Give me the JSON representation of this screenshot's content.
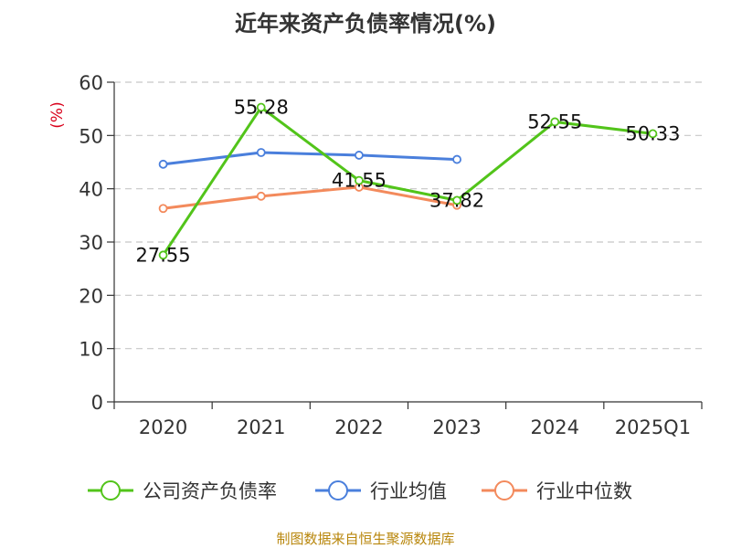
{
  "colors": {
    "series_main": "#52c41a",
    "series_avg": "#4a7fdc",
    "series_median": "#f38a5c",
    "axis": "#333333",
    "grid": "#c8c8c8",
    "ylabel": "#d9001b",
    "title": "#333333",
    "source": "#b8860b"
  },
  "chart_data": {
    "type": "line",
    "title": "近年来资产负债率情况(%)",
    "ylabel": "(%)",
    "xlabel": "",
    "categories": [
      "2020",
      "2021",
      "2022",
      "2023",
      "2024",
      "2025Q1"
    ],
    "ylim": [
      0,
      60
    ],
    "yticks": [
      0,
      10,
      20,
      30,
      40,
      50,
      60
    ],
    "grid": true,
    "legend_position": "bottom",
    "series": [
      {
        "name": "公司资产负债率",
        "color_key": "series_main",
        "values": [
          27.55,
          55.28,
          41.55,
          37.82,
          52.55,
          50.33
        ],
        "labels": [
          "27.55",
          "55.28",
          "41.55",
          "37.82",
          "52.55",
          "50.33"
        ]
      },
      {
        "name": "行业均值",
        "color_key": "series_avg",
        "values": [
          44.6,
          46.8,
          46.3,
          45.5,
          null,
          null
        ]
      },
      {
        "name": "行业中位数",
        "color_key": "series_median",
        "values": [
          36.3,
          38.6,
          40.3,
          36.9,
          null,
          null
        ]
      }
    ]
  },
  "source_text": "制图数据来自恒生聚源数据库"
}
